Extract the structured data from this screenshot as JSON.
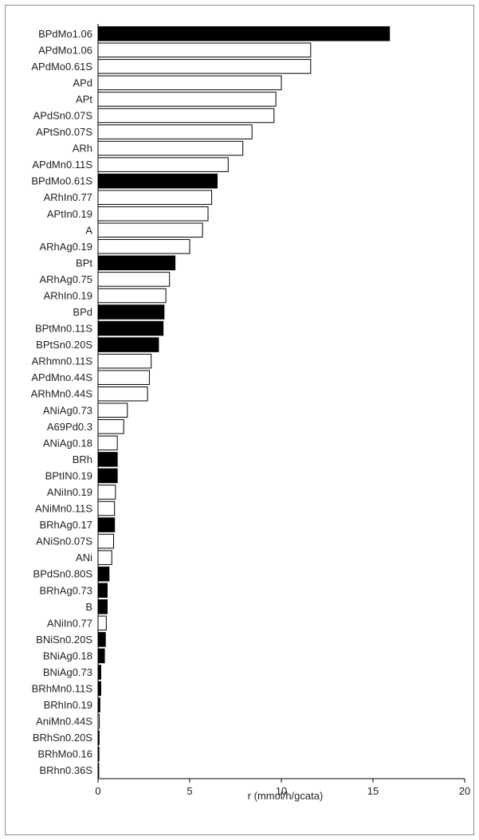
{
  "chart_data": {
    "type": "bar",
    "orientation": "horizontal",
    "title": "",
    "xlabel": "r (mmol/h/gcata)",
    "ylabel": "",
    "xlim": [
      0,
      20
    ],
    "xticks": [
      "0",
      "5",
      "10",
      "15",
      "20"
    ],
    "grid": false,
    "legend": "none",
    "colors": {
      "series_A": "#ffffff",
      "series_B": "#000000",
      "outline": "#000000"
    },
    "categories": [
      "BPdMo1.06",
      "APdMo1.06",
      "APdMo0.61S",
      "APd",
      "APt",
      "APdSn0.07S",
      "APtSn0.07S",
      "ARh",
      "APdMn0.11S",
      "BPdMo0.61S",
      "ARhIn0.77",
      "APtIn0.19",
      "A",
      "ARhAg0.19",
      "BPt",
      "ARhAg0.75",
      "ARhIn0.19",
      "BPd",
      "BPtMn0.11S",
      "BPtSn0.20S",
      "ARhmn0.11S",
      "APdMno.44S",
      "ARhMn0.44S",
      "ANiAg0.73",
      "A69Pd0.3",
      "ANiAg0.18",
      "BRh",
      "BPtIN0.19",
      "ANiIn0.19",
      "ANiMn0.11S",
      "BRhAg0.17",
      "ANiSn0.07S",
      "ANi",
      "BPdSn0.80S",
      "BRhAg0.73",
      "B",
      "ANiIn0.77",
      "BNiSn0.20S",
      "BNiAg0.18",
      "BNiAg0.73",
      "BRhMn0.11S",
      "BRhIn0.19",
      "AniMn0.44S",
      "BRhSn0.20S",
      "BRhMo0.16",
      "BRhn0.36S"
    ],
    "values": [
      15.9,
      11.6,
      11.6,
      10.0,
      9.7,
      9.6,
      8.4,
      7.9,
      7.1,
      6.5,
      6.2,
      6.0,
      5.7,
      5.0,
      4.2,
      3.9,
      3.7,
      3.6,
      3.55,
      3.3,
      2.9,
      2.8,
      2.7,
      1.6,
      1.4,
      1.05,
      1.05,
      1.05,
      0.95,
      0.9,
      0.9,
      0.85,
      0.75,
      0.6,
      0.5,
      0.5,
      0.45,
      0.4,
      0.35,
      0.15,
      0.15,
      0.1,
      0.07,
      0.06,
      0.05,
      0.04
    ],
    "series_group": [
      "B",
      "A",
      "A",
      "A",
      "A",
      "A",
      "A",
      "A",
      "A",
      "B",
      "A",
      "A",
      "A",
      "A",
      "B",
      "A",
      "A",
      "B",
      "B",
      "B",
      "A",
      "A",
      "A",
      "A",
      "A",
      "A",
      "B",
      "B",
      "A",
      "A",
      "B",
      "A",
      "A",
      "B",
      "B",
      "B",
      "A",
      "B",
      "B",
      "B",
      "B",
      "B",
      "A",
      "B",
      "B",
      "B"
    ]
  }
}
